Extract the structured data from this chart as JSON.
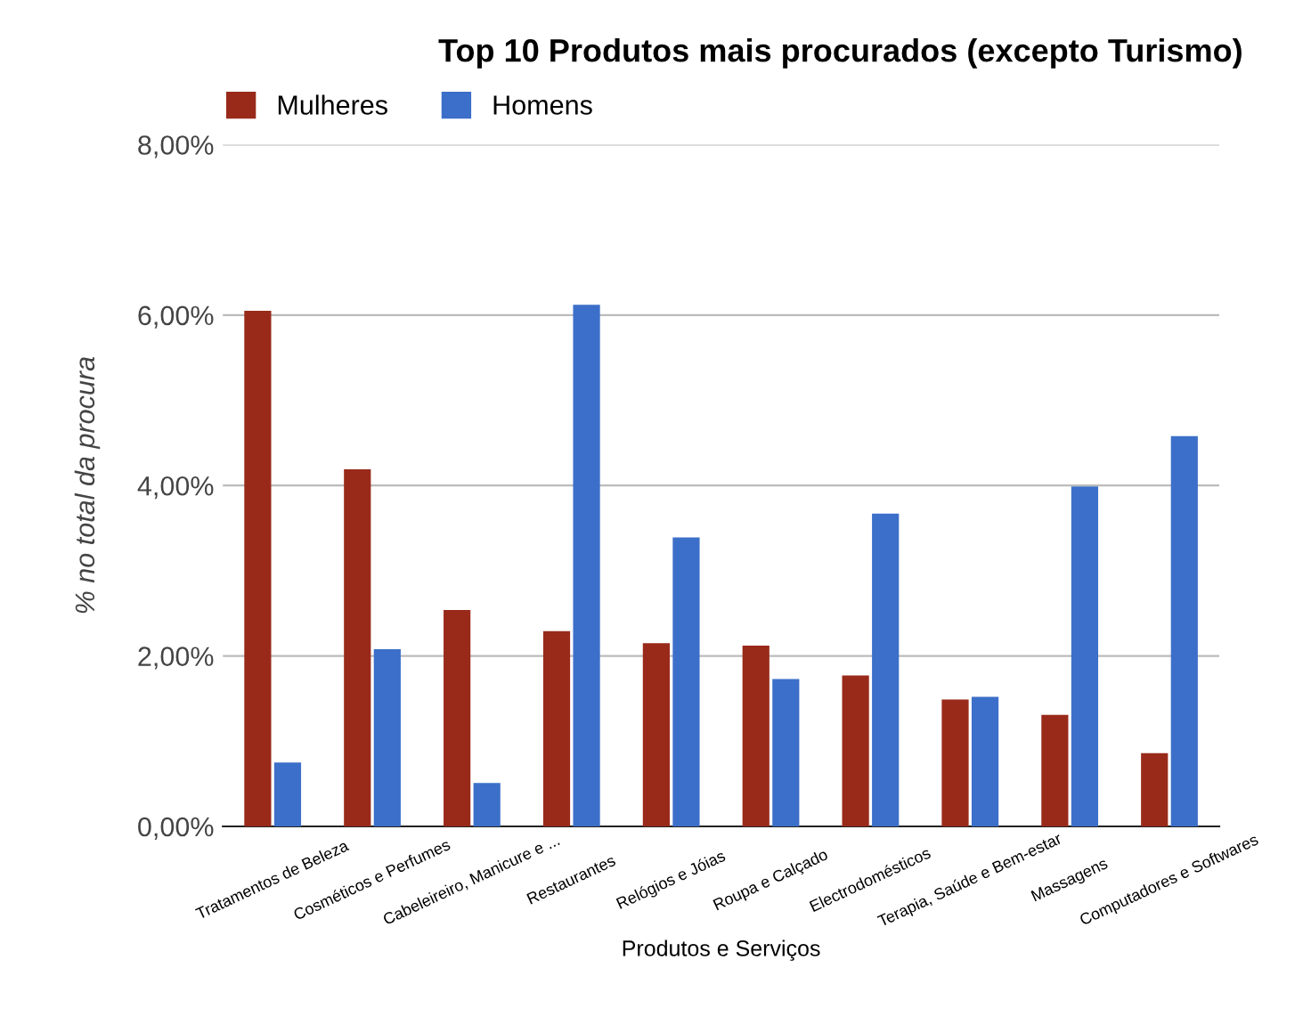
{
  "chart_data": {
    "type": "bar",
    "title": "Top 10 Produtos mais procurados (excepto Turismo)",
    "xlabel": "Produtos e Serviços",
    "ylabel": "% no total da procura",
    "categories": [
      "Tratamentos de Beleza",
      "Cosméticos e Perfumes",
      "Cabeleireiro, Manicure e ...",
      "Restaurantes",
      "Relógios e Jóias",
      "Roupa e Calçado",
      "Electrodomésticos",
      "Terapia, Saúde e Bem-estar",
      "Massagens",
      "Computadores e Softwares"
    ],
    "series": [
      {
        "name": "Mulheres",
        "color": "#992a1a",
        "values": [
          6.05,
          4.19,
          2.54,
          2.29,
          2.15,
          2.12,
          1.77,
          1.49,
          1.31,
          0.86
        ]
      },
      {
        "name": "Homens",
        "color": "#3c6fc9",
        "values": [
          0.75,
          2.08,
          0.51,
          6.12,
          3.39,
          1.73,
          3.67,
          1.52,
          3.99,
          4.58
        ]
      }
    ],
    "ylim": [
      0,
      8
    ],
    "yticks": [
      {
        "value": 0,
        "label": "0,00%"
      },
      {
        "value": 2,
        "label": "2,00%"
      },
      {
        "value": 4,
        "label": "4,00%"
      },
      {
        "value": 6,
        "label": "6,00%"
      },
      {
        "value": 8,
        "label": "8,00%"
      }
    ],
    "grid": "y",
    "legend": "top left"
  }
}
